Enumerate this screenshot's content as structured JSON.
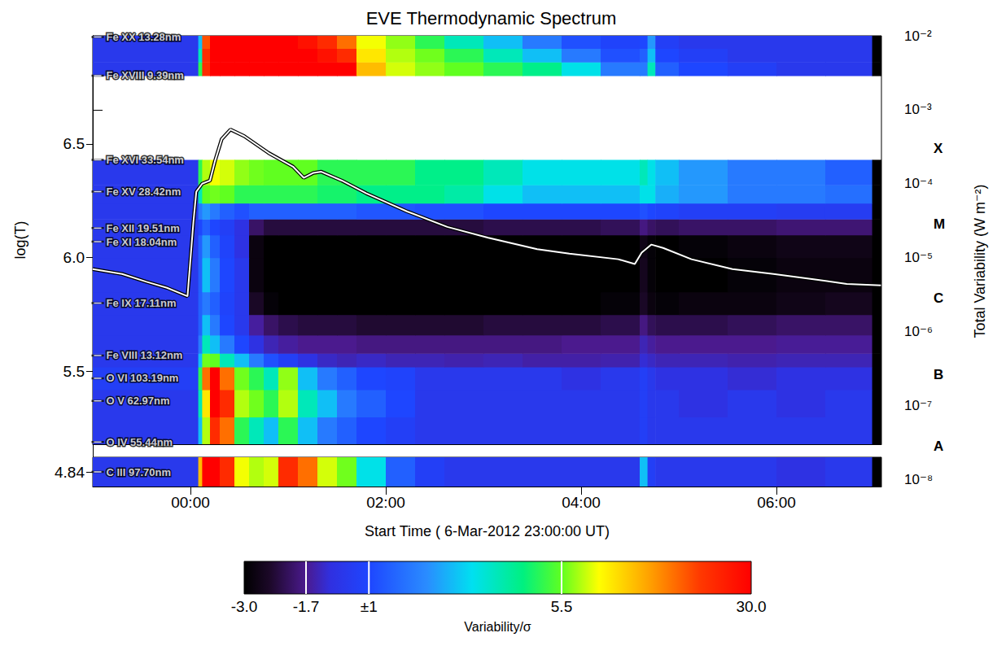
{
  "chart_data": {
    "type": "heatmap",
    "title": "EVE Thermodynamic Spectrum",
    "xlabel": "Start Time ( 6-Mar-2012 23:00:00 UT)",
    "ylabel": "log(T)",
    "y2label": "Total Variability (W m⁻²)",
    "grid": false,
    "log": "y2",
    "xlim": [
      0,
      8.075
    ],
    "xticks": [
      {
        "value": 1,
        "label": "00:00"
      },
      {
        "value": 3,
        "label": "02:00"
      },
      {
        "value": 5,
        "label": "04:00"
      },
      {
        "value": 7,
        "label": "06:00"
      }
    ],
    "ylim": [
      5.18,
      6.975
    ],
    "yticks": [
      5.5,
      {
        "value": 6,
        "label": "6.0"
      },
      6.5
    ],
    "y2lim": [
      8e-09,
      0.01
    ],
    "y2ticks": [
      {
        "value": 1e-08,
        "label": "10⁻⁸"
      },
      {
        "value": 1e-07,
        "label": "10⁻⁷"
      },
      {
        "value": 1e-06,
        "label": "10⁻⁶"
      },
      {
        "value": 1e-05,
        "label": "10⁻⁵"
      },
      {
        "value": 0.0001,
        "label": "10⁻⁴"
      },
      {
        "value": 0.001,
        "label": "10⁻³"
      },
      {
        "value": 0.01,
        "label": "10⁻²"
      }
    ],
    "flare_classes": [
      {
        "value": 2.8e-08,
        "label": "A"
      },
      {
        "value": 2.6e-07,
        "label": "B"
      },
      {
        "value": 2.8e-06,
        "label": "C"
      },
      {
        "value": 2.8e-05,
        "label": "M"
      },
      {
        "value": 0.0003,
        "label": "X"
      }
    ],
    "lines": [
      {
        "label": "Fe XX 13.28nm",
        "value": 6.97
      },
      {
        "label": "Fe XVIII 9.39nm",
        "value": 6.8
      },
      {
        "label": "Fe XVI 33.54nm",
        "value": 6.43
      },
      {
        "label": "Fe XV 28.42nm",
        "value": 6.29
      },
      {
        "label": "Fe XII 19.51nm",
        "value": 6.13
      },
      {
        "label": "Fe XI 18.04nm",
        "value": 6.07
      },
      {
        "label": "Fe IX 17.11nm",
        "value": 5.8
      },
      {
        "label": "Fe VIII 13.12nm",
        "value": 5.57
      },
      {
        "label": "O VI 103.19nm",
        "value": 5.47
      },
      {
        "label": "O V 62.97nm",
        "value": 5.37
      },
      {
        "label": "O IV 55.44nm",
        "value": 5.19
      }
    ],
    "cells": {
      "x_edges": [
        0,
        1.08,
        1.12,
        1.2,
        1.3,
        1.45,
        1.6,
        1.75,
        1.9,
        2.1,
        2.3,
        2.5,
        2.7,
        3.0,
        3.3,
        3.6,
        4.0,
        4.4,
        4.8,
        5.2,
        5.6,
        5.68,
        5.76,
        6.0,
        6.5,
        7.0,
        7.5,
        7.98,
        8.075
      ],
      "y_edges": [
        5.18,
        5.3,
        5.42,
        5.52,
        5.58,
        5.66,
        5.75,
        5.85,
        6.0,
        6.1,
        6.17,
        6.24,
        6.32,
        6.43,
        6.8,
        6.86,
        6.92,
        6.975
      ],
      "values": [
        [
          0,
          3,
          8,
          25,
          20,
          5,
          4,
          3,
          5,
          3,
          2,
          1.5,
          1,
          0.5,
          0,
          0,
          0,
          0,
          0,
          0,
          0.5,
          0,
          0,
          0,
          0,
          0,
          0,
          -3
        ],
        [
          0,
          4,
          12,
          30,
          25,
          8,
          6,
          5,
          8,
          4,
          3,
          2,
          1.5,
          1,
          0,
          0,
          0,
          0,
          0,
          0,
          0.5,
          0,
          0,
          -0.5,
          0,
          -0.5,
          0,
          -3
        ],
        [
          0.5,
          5,
          20,
          30,
          20,
          6,
          5,
          4,
          7,
          3,
          2,
          1.5,
          1,
          0.8,
          0,
          0,
          0,
          0,
          -0.5,
          0,
          0.5,
          0,
          -0.5,
          -0.5,
          -0.8,
          -0.5,
          -0.5,
          -3
        ],
        [
          0,
          3,
          6,
          5.5,
          4,
          3,
          2,
          1.2,
          0.5,
          -0.5,
          -1,
          -1.2,
          -1,
          -1.2,
          -1.2,
          -1.3,
          -1.2,
          -1.4,
          -1.4,
          -1.3,
          -0.8,
          -1,
          -1.2,
          -1.2,
          -1.3,
          -1.2,
          -1.2,
          -3
        ],
        [
          0,
          2,
          4,
          3,
          2,
          1,
          -0.5,
          -1.2,
          -1.5,
          -1.7,
          -1.7,
          -1.7,
          -1.8,
          -1.8,
          -1.8,
          -1.8,
          -1.8,
          -1.8,
          -1.7,
          -1.7,
          -1.2,
          -1.5,
          -1.7,
          -1.7,
          -1.7,
          -1.6,
          -1.6,
          -3
        ],
        [
          0,
          1.5,
          3,
          2,
          1,
          0,
          -1.5,
          -2,
          -2.2,
          -2.3,
          -2.3,
          -2.3,
          -2.4,
          -2.4,
          -2.4,
          -2.4,
          -2.3,
          -2.3,
          -2.3,
          -2.2,
          -1.8,
          -2.1,
          -2.2,
          -2.2,
          -2.1,
          -2,
          -2,
          -3
        ],
        [
          0,
          1.5,
          2,
          1.5,
          0.8,
          0,
          -2.5,
          -2.9,
          -3,
          -3,
          -3,
          -3,
          -3,
          -3,
          -3,
          -3,
          -3,
          -3,
          -3,
          -2.9,
          -2.5,
          -2.8,
          -2.9,
          -2.8,
          -2.8,
          -2.7,
          -2.6,
          -3
        ],
        [
          0,
          1.5,
          3,
          2,
          1,
          0,
          -2.8,
          -3,
          -3,
          -3,
          -3,
          -3,
          -3,
          -3,
          -3,
          -3,
          -3,
          -3,
          -3,
          -3,
          -2.6,
          -2.9,
          -3,
          -3,
          -2.9,
          -2.8,
          -2.8,
          -3
        ],
        [
          0,
          1.5,
          2.5,
          1.5,
          0.8,
          -0.5,
          -2.8,
          -3,
          -3,
          -3,
          -3,
          -3,
          -3,
          -3,
          -3,
          -3,
          -3,
          -3,
          -3,
          -3,
          -2.7,
          -2.9,
          -3,
          -2.9,
          -2.8,
          -2.7,
          -2.7,
          -3
        ],
        [
          0,
          1,
          1.5,
          1,
          0.5,
          -0.5,
          -2,
          -2.3,
          -2.3,
          -2.3,
          -2.3,
          -2.3,
          -2.3,
          -2.3,
          -2.3,
          -2.3,
          -2.2,
          -2.2,
          -2.2,
          -2.1,
          -1.8,
          -2,
          -2.1,
          -2,
          -2,
          -1.9,
          -1.9,
          -3
        ],
        [
          0,
          2,
          2.5,
          2,
          1.5,
          1.2,
          1.5,
          1.5,
          1.5,
          1.5,
          1.5,
          1.5,
          1.3,
          1.3,
          1.2,
          1.2,
          1,
          1,
          1,
          1,
          1.2,
          1,
          0.8,
          0.5,
          0.5,
          0.3,
          0.3,
          -3
        ],
        [
          0,
          4,
          5.5,
          6,
          5.5,
          5,
          5,
          5,
          5,
          5,
          4.8,
          4.8,
          4.5,
          4.5,
          4.5,
          4.2,
          3.5,
          3,
          3,
          3,
          3.5,
          3.5,
          2.8,
          2.5,
          2,
          2,
          1.8,
          -3
        ],
        [
          0,
          5,
          8,
          10,
          9,
          7,
          6,
          5.5,
          5.5,
          5.5,
          5,
          5,
          5,
          5,
          4.5,
          4.5,
          4,
          3.5,
          3.5,
          3.5,
          4,
          3.5,
          3,
          2.5,
          2,
          2,
          1.5,
          -3
        ],
        [
          null,
          null,
          null,
          null,
          null,
          null,
          null,
          null,
          null,
          null,
          null,
          null,
          null,
          null,
          null,
          null,
          null,
          null,
          null,
          null,
          null,
          null,
          null,
          null,
          null,
          null,
          null,
          null
        ],
        [
          0,
          5,
          25,
          30,
          30,
          30,
          30,
          30,
          30,
          30,
          30,
          30,
          15,
          9,
          7,
          5.5,
          5,
          4.5,
          3.5,
          2,
          2,
          4,
          1.5,
          1,
          0.5,
          0,
          0,
          -3
        ],
        [
          0,
          4,
          25,
          30,
          30,
          30,
          30,
          30,
          30,
          30,
          28,
          25,
          12,
          8,
          6,
          5,
          4,
          3,
          2,
          1.2,
          1.5,
          3,
          1,
          0.5,
          0,
          0,
          0,
          -3
        ],
        [
          0,
          3,
          22,
          30,
          30,
          30,
          30,
          30,
          30,
          28,
          25,
          20,
          10,
          7,
          5,
          4,
          3,
          2,
          1.2,
          0.8,
          1,
          2.5,
          0.5,
          0,
          0,
          0,
          0,
          -3
        ]
      ]
    },
    "lower_panel": {
      "ylim": [
        4.78,
        4.9
      ],
      "yticks": [
        4.84
      ],
      "label": {
        "label": "C III 97.70nm",
        "value": 4.84
      },
      "values": [
        0,
        15,
        30,
        30,
        25,
        10,
        8,
        9,
        25,
        20,
        9,
        6,
        3.5,
        1.5,
        0.5,
        0,
        0,
        0,
        0,
        0,
        3,
        0.5,
        0,
        0,
        0,
        -0.5,
        0,
        -3
      ]
    },
    "colorbar": {
      "title": "Variability/σ",
      "range": [
        -3,
        30
      ],
      "ticks": [
        {
          "value": -3,
          "label": "-3.0"
        },
        -1.7,
        {
          "value": 1,
          "label": "±1"
        },
        5.5,
        {
          "value": 30,
          "label": "30.0"
        }
      ]
    },
    "series": [
      {
        "type": "line",
        "axis": "y2",
        "color": "#ffffff",
        "x": [
          0,
          0.3,
          0.55,
          0.76,
          0.97,
          1.03,
          1.06,
          1.12,
          1.2,
          1.25,
          1.32,
          1.41,
          1.55,
          1.8,
          2.05,
          2.16,
          2.26,
          2.34,
          2.55,
          2.8,
          3.22,
          3.63,
          4.05,
          4.55,
          4.88,
          5.38,
          5.55,
          5.62,
          5.72,
          5.84,
          6.13,
          6.55,
          6.97,
          7.38,
          7.72,
          8.07
        ],
        "values": [
          7e-06,
          6e-06,
          4.7e-06,
          3.9e-06,
          3e-06,
          3e-05,
          7.8e-05,
          0.0001,
          0.00011,
          0.0002,
          0.0004,
          0.00054,
          0.00044,
          0.00026,
          0.00017,
          0.00012,
          0.00014,
          0.000145,
          0.00011,
          7.4e-05,
          4.2e-05,
          2.6e-05,
          1.85e-05,
          1.3e-05,
          1.13e-05,
          9.5e-06,
          8.2e-06,
          1.17e-05,
          1.5e-05,
          1.35e-05,
          9.5e-06,
          7e-06,
          6e-06,
          5.1e-06,
          4.4e-06,
          4.2e-06
        ]
      }
    ]
  }
}
